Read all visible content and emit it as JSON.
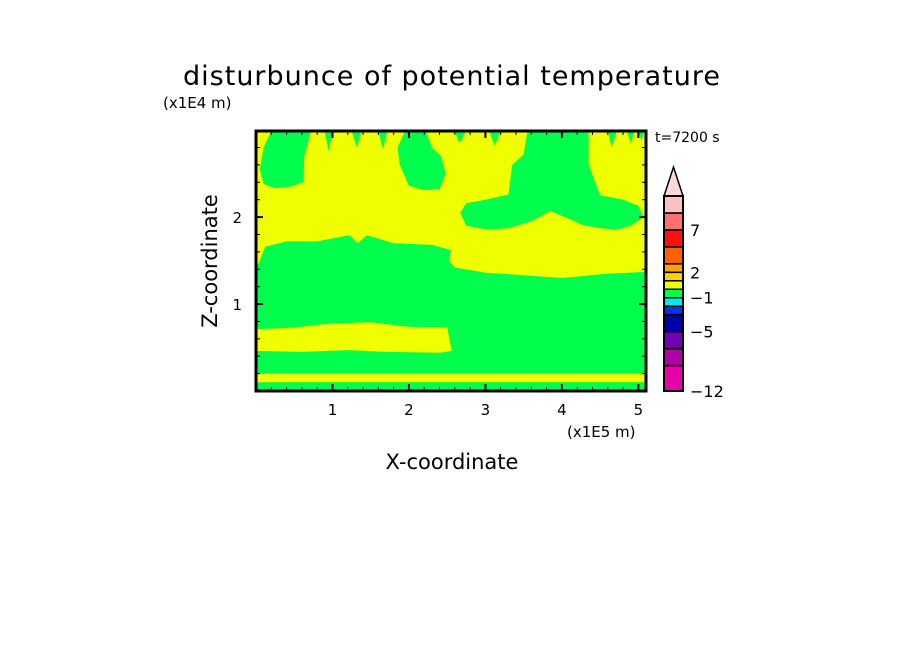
{
  "chart_data": {
    "type": "heatmap",
    "subtype": "filled-contour",
    "title": "disturbunce of potential temperature",
    "xlabel": "X-coordinate",
    "ylabel": "Z-coordinate",
    "x_unit": "(x1E5 m)",
    "y_unit": "(x1E4 m)",
    "annotation": "t=7200 s",
    "xlim": [
      0,
      5.1
    ],
    "ylim": [
      0,
      2.99
    ],
    "x_ticks": [
      1,
      2,
      3,
      4,
      5
    ],
    "y_ticks": [
      1,
      2
    ],
    "x_minor_step": 0.2,
    "y_minor_step": 0.2,
    "colorbar": {
      "levels": [
        -12,
        -9,
        -7,
        -5,
        -3,
        -2,
        -1,
        0,
        1,
        2,
        3,
        5,
        7,
        9,
        11
      ],
      "colors": [
        "#e800a8",
        "#b000a8",
        "#7000b0",
        "#0000a8",
        "#0030f0",
        "#00e8f0",
        "#00ff4c",
        "#f0ff00",
        "#ffd000",
        "#ffa000",
        "#ff6000",
        "#ff1010",
        "#ff7070",
        "#ffc0c0"
      ],
      "extend_color": "#ffd8d8",
      "tick_labels": [
        "-12",
        "-5",
        "-1",
        "2",
        "7"
      ],
      "tick_values": [
        -12,
        -5,
        -1,
        2,
        7
      ]
    },
    "background_level_color": "#f0ff00",
    "regions": [
      {
        "label": "bottom-green",
        "color": "#00ff4c",
        "polygon": [
          [
            0,
            0
          ],
          [
            5.1,
            0
          ],
          [
            5.1,
            0.1
          ],
          [
            0,
            0.1
          ]
        ]
      },
      {
        "label": "large-green-lower",
        "color": "#00ff4c",
        "polygon": [
          [
            0,
            0.2
          ],
          [
            5.1,
            0.2
          ],
          [
            5.1,
            1.37
          ],
          [
            4.6,
            1.35
          ],
          [
            4.0,
            1.3
          ],
          [
            3.5,
            1.33
          ],
          [
            3.0,
            1.36
          ],
          [
            2.6,
            1.42
          ],
          [
            2.52,
            1.5
          ],
          [
            2.55,
            1.62
          ],
          [
            2.3,
            1.68
          ],
          [
            1.8,
            1.7
          ],
          [
            1.45,
            1.79
          ],
          [
            1.33,
            1.7
          ],
          [
            1.22,
            1.79
          ],
          [
            0.8,
            1.72
          ],
          [
            0.4,
            1.72
          ],
          [
            0.12,
            1.66
          ],
          [
            0.05,
            1.5
          ],
          [
            0,
            1.42
          ]
        ]
      },
      {
        "label": "yellow-band-lower-left",
        "color": "#f0ff00",
        "polygon": [
          [
            0,
            0.46
          ],
          [
            0.6,
            0.45
          ],
          [
            1.2,
            0.47
          ],
          [
            1.7,
            0.45
          ],
          [
            2.4,
            0.44
          ],
          [
            2.56,
            0.46
          ],
          [
            2.5,
            0.73
          ],
          [
            2.0,
            0.74
          ],
          [
            1.5,
            0.79
          ],
          [
            1.0,
            0.78
          ],
          [
            0.5,
            0.73
          ],
          [
            0,
            0.71
          ]
        ]
      },
      {
        "label": "upper-right-green",
        "color": "#00ff4c",
        "polygon": [
          [
            2.67,
            2.05
          ],
          [
            2.75,
            2.16
          ],
          [
            3.0,
            2.2
          ],
          [
            3.3,
            2.26
          ],
          [
            3.35,
            2.6
          ],
          [
            3.5,
            2.72
          ],
          [
            3.55,
            2.99
          ],
          [
            4.35,
            2.99
          ],
          [
            4.35,
            2.6
          ],
          [
            4.5,
            2.25
          ],
          [
            4.8,
            2.2
          ],
          [
            5.0,
            2.13
          ],
          [
            5.07,
            2.0
          ],
          [
            4.9,
            1.9
          ],
          [
            4.7,
            1.85
          ],
          [
            4.3,
            1.9
          ],
          [
            3.85,
            2.07
          ],
          [
            3.6,
            1.95
          ],
          [
            3.3,
            1.87
          ],
          [
            3.0,
            1.86
          ],
          [
            2.75,
            1.9
          ]
        ]
      },
      {
        "label": "top-left-green",
        "color": "#00ff4c",
        "polygon": [
          [
            0.05,
            2.55
          ],
          [
            0.1,
            2.38
          ],
          [
            0.25,
            2.33
          ],
          [
            0.45,
            2.35
          ],
          [
            0.62,
            2.4
          ],
          [
            0.63,
            2.7
          ],
          [
            0.72,
            2.99
          ],
          [
            0.2,
            2.99
          ],
          [
            0.1,
            2.8
          ]
        ]
      },
      {
        "label": "top-middle-green",
        "color": "#00ff4c",
        "polygon": [
          [
            1.88,
            2.6
          ],
          [
            2.0,
            2.36
          ],
          [
            2.2,
            2.31
          ],
          [
            2.4,
            2.32
          ],
          [
            2.48,
            2.5
          ],
          [
            2.42,
            2.7
          ],
          [
            2.3,
            2.8
          ],
          [
            2.22,
            2.99
          ],
          [
            1.95,
            2.99
          ],
          [
            1.85,
            2.8
          ]
        ]
      },
      {
        "label": "finger-1",
        "color": "#00ff4c",
        "polygon": [
          [
            0.9,
            2.99
          ],
          [
            0.95,
            2.75
          ],
          [
            1.0,
            2.99
          ]
        ]
      },
      {
        "label": "finger-2",
        "color": "#00ff4c",
        "polygon": [
          [
            1.25,
            2.99
          ],
          [
            1.32,
            2.8
          ],
          [
            1.38,
            2.99
          ]
        ]
      },
      {
        "label": "finger-3",
        "color": "#00ff4c",
        "polygon": [
          [
            1.6,
            2.99
          ],
          [
            1.66,
            2.78
          ],
          [
            1.72,
            2.99
          ]
        ]
      },
      {
        "label": "finger-4",
        "color": "#00ff4c",
        "polygon": [
          [
            2.6,
            2.99
          ],
          [
            2.66,
            2.85
          ],
          [
            2.75,
            2.99
          ]
        ]
      },
      {
        "label": "finger-5",
        "color": "#00ff4c",
        "polygon": [
          [
            3.05,
            2.99
          ],
          [
            3.12,
            2.82
          ],
          [
            3.2,
            2.99
          ]
        ]
      },
      {
        "label": "finger-6",
        "color": "#00ff4c",
        "polygon": [
          [
            4.6,
            2.99
          ],
          [
            4.65,
            2.8
          ],
          [
            4.72,
            2.99
          ]
        ]
      },
      {
        "label": "finger-7",
        "color": "#00ff4c",
        "polygon": [
          [
            4.85,
            2.99
          ],
          [
            4.9,
            2.85
          ],
          [
            4.95,
            2.99
          ]
        ]
      },
      {
        "label": "finger-8",
        "color": "#00ff4c",
        "polygon": [
          [
            5.0,
            2.99
          ],
          [
            5.04,
            2.88
          ],
          [
            5.08,
            2.99
          ]
        ]
      }
    ]
  }
}
